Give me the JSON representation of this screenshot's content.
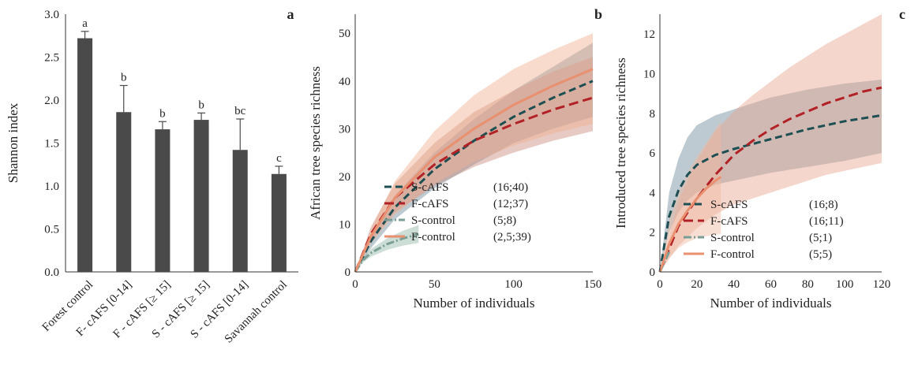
{
  "chart_data": [
    {
      "id": "a",
      "type": "bar",
      "panel_letter": "a",
      "ylabel": "Shannon index",
      "ylim": [
        0,
        3.0
      ],
      "yticks": [
        "0.0",
        "0.5",
        "1.0",
        "1.5",
        "2.0",
        "2.5",
        "3.0"
      ],
      "categories": [
        "Forest control",
        "F- cAFS [0-14]",
        "F - cAFS [≥ 15]",
        "S - cAFS [≥ 15]",
        "S - cAFS [0-14]",
        "Savannah control"
      ],
      "values": [
        2.72,
        1.86,
        1.66,
        1.77,
        1.42,
        1.14
      ],
      "error_upper": [
        0.08,
        0.31,
        0.09,
        0.08,
        0.36,
        0.09
      ],
      "significance_letters": [
        "a",
        "b",
        "b",
        "b",
        "bc",
        "c"
      ],
      "color": "#4a4a4a"
    },
    {
      "id": "b",
      "type": "line",
      "panel_letter": "b",
      "xlabel": "Number of individuals",
      "ylabel": "African tree species richness",
      "xlim": [
        0,
        150
      ],
      "ylim": [
        0,
        54
      ],
      "xticks": [
        "0",
        "50",
        "100",
        "150"
      ],
      "yticks": [
        "0",
        "10",
        "20",
        "30",
        "40",
        "50"
      ],
      "legend_position": "bottom-right",
      "series": [
        {
          "name": "S-cAFS",
          "legend_values": "(16;40)",
          "color": "#1d4e52",
          "dash": "9,5",
          "x": [
            0,
            10,
            25,
            50,
            75,
            100,
            125,
            150
          ],
          "y": [
            0,
            6.5,
            13.5,
            21.5,
            27.5,
            32.5,
            36.5,
            40
          ],
          "lower": [
            0,
            5,
            11,
            17.5,
            22.5,
            27,
            30,
            32.5
          ],
          "upper": [
            0,
            8,
            16,
            25,
            32,
            38,
            43,
            48
          ],
          "band_color": "#6e8a9a"
        },
        {
          "name": "F-cAFS",
          "legend_values": "(12;37)",
          "color": "#b22126",
          "dash": "12,6",
          "x": [
            0,
            10,
            25,
            50,
            75,
            100,
            125,
            150
          ],
          "y": [
            0,
            8,
            15.5,
            22.5,
            27.5,
            31,
            34,
            36.5
          ],
          "lower": [
            0,
            6.5,
            12.5,
            18,
            22,
            25,
            27.5,
            29.5
          ],
          "upper": [
            0,
            9.5,
            18.5,
            27,
            33.5,
            38,
            42,
            45
          ],
          "band_color": "#c98a7c"
        },
        {
          "name": "S-control",
          "legend_values": "(5;8)",
          "color": "#7a9e96",
          "dash": "10,3,2,3",
          "x": [
            0,
            5,
            10,
            20,
            30,
            40
          ],
          "y": [
            0,
            2.5,
            4,
            5.8,
            7,
            7.9
          ],
          "lower": [
            0,
            2,
            3.2,
            4.6,
            5.5,
            6.1
          ],
          "upper": [
            0,
            3,
            4.8,
            7,
            8.6,
            9.8
          ],
          "band_color": "#8fb5a5"
        },
        {
          "name": "F-control",
          "legend_values": "(2,5;39)",
          "color": "#e8906f",
          "dash": "",
          "x": [
            0,
            10,
            25,
            50,
            75,
            100,
            125,
            150
          ],
          "y": [
            0,
            7.5,
            15.5,
            24,
            30,
            35,
            39,
            42.5
          ],
          "lower": [
            0,
            6,
            12,
            18.5,
            23,
            26.5,
            29,
            31
          ],
          "upper": [
            0,
            9,
            19,
            29.5,
            37,
            42.5,
            46.5,
            50
          ],
          "band_color": "#efaf90"
        }
      ]
    },
    {
      "id": "c",
      "type": "line",
      "panel_letter": "c",
      "xlabel": "Number of individuals",
      "ylabel": "Introduced tree species richness",
      "xlim": [
        0,
        120
      ],
      "ylim": [
        0,
        13
      ],
      "xticks": [
        "0",
        "20",
        "40",
        "60",
        "80",
        "100",
        "120"
      ],
      "yticks": [
        "0",
        "2",
        "4",
        "6",
        "8",
        "10",
        "12"
      ],
      "legend_position": "bottom-right",
      "series": [
        {
          "name": "S-cAFS",
          "legend_values": "(16;8)",
          "color": "#1d4e52",
          "dash": "9,5",
          "x": [
            0,
            5,
            10,
            15,
            20,
            30,
            40,
            60,
            80,
            100,
            120
          ],
          "y": [
            0,
            2.8,
            4.1,
            4.9,
            5.4,
            5.9,
            6.2,
            6.7,
            7.2,
            7.6,
            7.9
          ],
          "lower": [
            0,
            2,
            3,
            3.6,
            4,
            4.4,
            4.6,
            5,
            5.3,
            5.6,
            6
          ],
          "upper": [
            0,
            4,
            5.7,
            6.8,
            7.4,
            7.9,
            8.2,
            8.8,
            9.2,
            9.5,
            9.7
          ],
          "band_color": "#6e8a9a"
        },
        {
          "name": "F-cAFS",
          "legend_values": "(16;11)",
          "color": "#b22126",
          "dash": "12,6",
          "x": [
            0,
            10,
            20,
            30,
            40,
            50,
            60,
            70,
            80,
            90,
            100,
            110,
            120
          ],
          "y": [
            0,
            2.3,
            3.7,
            4.9,
            5.9,
            6.6,
            7.2,
            7.7,
            8.1,
            8.5,
            8.8,
            9.1,
            9.3
          ],
          "lower": [
            0,
            1.3,
            2.2,
            2.9,
            3.4,
            3.7,
            4,
            4.3,
            4.6,
            4.9,
            5.1,
            5.3,
            5.5
          ],
          "upper": [
            0,
            3.6,
            5.6,
            7.1,
            8.1,
            8.9,
            9.6,
            10.3,
            10.9,
            11.5,
            12,
            12.5,
            13
          ],
          "band_color": "#e8a58e"
        },
        {
          "name": "S-control",
          "legend_values": "(5;1)",
          "color": "#7a9e96",
          "dash": "10,3,2,3",
          "x": [
            0,
            5
          ],
          "y": [
            0,
            1
          ],
          "lower": [
            0,
            1
          ],
          "upper": [
            0,
            1
          ],
          "band_color": "#8fb5a5"
        },
        {
          "name": "F-control",
          "legend_values": "(5;5)",
          "color": "#e8906f",
          "dash": "",
          "x": [
            0,
            5,
            10,
            15,
            20,
            25,
            30,
            33
          ],
          "y": [
            0,
            1.4,
            2.4,
            3.1,
            3.7,
            4.2,
            4.6,
            4.8
          ],
          "lower": [
            0,
            0.7,
            1.2,
            1.5,
            1.7,
            1.8,
            1.9,
            1.9
          ],
          "upper": [
            0,
            2.6,
            4,
            5,
            5.8,
            6.5,
            7.2,
            7.6
          ],
          "band_color": "#efb99f"
        }
      ]
    }
  ]
}
